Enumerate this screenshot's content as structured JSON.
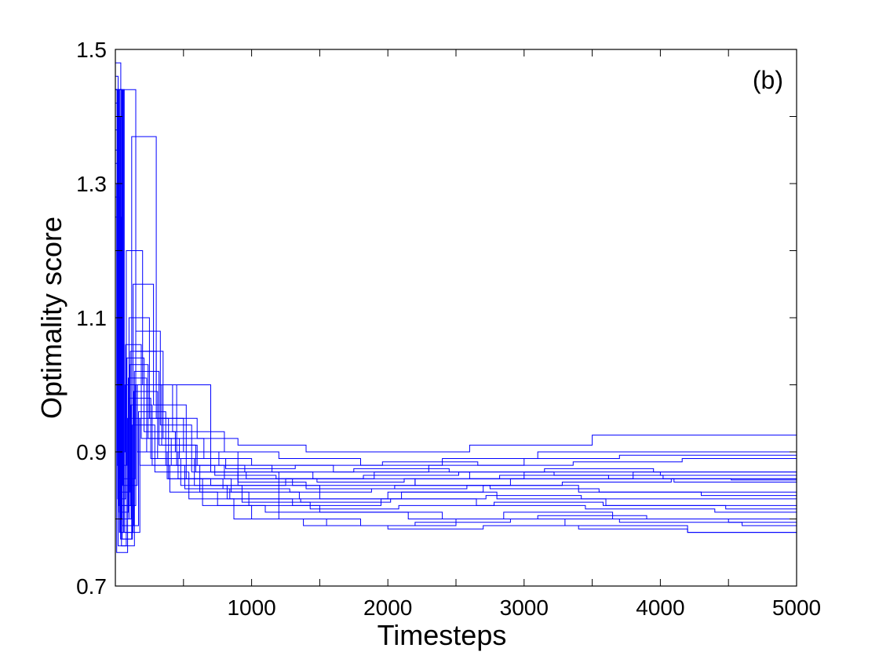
{
  "chart_data": {
    "type": "line",
    "title": "",
    "panel_label": "(b)",
    "xlabel": "Timesteps",
    "ylabel": "Optimality score",
    "xlim": [
      0,
      5000
    ],
    "ylim": [
      0.7,
      1.5
    ],
    "x_ticks": [
      1000,
      2000,
      3000,
      4000,
      5000
    ],
    "x_tick_labels": [
      "1000",
      "2000",
      "3000",
      "4000",
      "5000"
    ],
    "x_minor_ticks": [
      500,
      1500,
      2500,
      3500,
      4500
    ],
    "y_ticks": [
      0.7,
      0.9,
      1.1,
      1.3,
      1.5
    ],
    "y_tick_labels": [
      "0.7",
      "0.9",
      "1.1",
      "1.3",
      "1.5"
    ],
    "y_minor_ticks": [
      0.8,
      1.0,
      1.2,
      1.4
    ],
    "grid": false,
    "legend": "none",
    "line_color": "#0000ff",
    "step_style": "post",
    "series": [
      {
        "x": [
          0,
          30,
          60,
          150,
          300,
          600,
          900,
          1400,
          2000,
          2600,
          3500,
          5000
        ],
        "y": [
          1.44,
          0.78,
          1.44,
          1.05,
          0.95,
          0.92,
          0.91,
          0.9,
          0.9,
          0.91,
          0.925,
          0.925
        ]
      },
      {
        "x": [
          0,
          20,
          80,
          200,
          450,
          800,
          1300,
          2200,
          3000,
          4000,
          5000
        ],
        "y": [
          1.46,
          0.76,
          1.2,
          1.0,
          0.88,
          0.86,
          0.85,
          0.86,
          0.87,
          0.865,
          0.865
        ]
      },
      {
        "x": [
          0,
          40,
          100,
          250,
          500,
          900,
          1500,
          2100,
          2800,
          3600,
          5000
        ],
        "y": [
          1.48,
          0.8,
          1.1,
          0.95,
          0.9,
          0.85,
          0.83,
          0.84,
          0.83,
          0.82,
          0.82
        ]
      },
      {
        "x": [
          0,
          50,
          120,
          300,
          700,
          1200,
          1800,
          2500,
          3300,
          4200,
          5000
        ],
        "y": [
          1.44,
          0.77,
          1.37,
          1.0,
          0.87,
          0.8,
          0.79,
          0.8,
          0.79,
          0.78,
          0.78
        ]
      },
      {
        "x": [
          0,
          10,
          90,
          180,
          400,
          750,
          1100,
          1700,
          2400,
          3100,
          3900,
          5000
        ],
        "y": [
          1.3,
          0.75,
          0.95,
          0.88,
          0.84,
          0.82,
          0.81,
          0.81,
          0.8,
          0.805,
          0.8,
          0.8
        ]
      },
      {
        "x": [
          0,
          25,
          110,
          350,
          650,
          1000,
          1600,
          2300,
          3000,
          3700,
          5000
        ],
        "y": [
          1.44,
          0.82,
          1.05,
          0.92,
          0.89,
          0.88,
          0.87,
          0.88,
          0.89,
          0.895,
          0.895
        ]
      },
      {
        "x": [
          0,
          35,
          130,
          280,
          520,
          850,
          1350,
          2000,
          2700,
          3400,
          4300,
          5000
        ],
        "y": [
          1.4,
          0.78,
          1.15,
          0.97,
          0.86,
          0.84,
          0.83,
          0.84,
          0.85,
          0.84,
          0.835,
          0.835
        ]
      },
      {
        "x": [
          0,
          15,
          70,
          160,
          380,
          700,
          1250,
          1900,
          2600,
          3200,
          4100,
          5000
        ],
        "y": [
          1.44,
          0.9,
          1.0,
          0.9,
          0.86,
          0.85,
          0.86,
          0.87,
          0.86,
          0.86,
          0.855,
          0.855
        ]
      },
      {
        "x": [
          0,
          45,
          140,
          320,
          600,
          950,
          1450,
          2200,
          2900,
          3800,
          5000
        ],
        "y": [
          1.25,
          0.76,
          1.02,
          0.91,
          0.88,
          0.87,
          0.86,
          0.85,
          0.86,
          0.87,
          0.87
        ]
      },
      {
        "x": [
          0,
          55,
          160,
          420,
          800,
          1200,
          1800,
          2400,
          3100,
          4000,
          5000
        ],
        "y": [
          1.44,
          0.85,
          1.0,
          0.93,
          0.9,
          0.89,
          0.88,
          0.89,
          0.9,
          0.9,
          0.9
        ]
      },
      {
        "x": [
          0,
          20,
          100,
          260,
          480,
          820,
          1300,
          1950,
          2650,
          3450,
          4400,
          5000
        ],
        "y": [
          1.38,
          0.8,
          0.98,
          0.89,
          0.85,
          0.83,
          0.82,
          0.83,
          0.82,
          0.815,
          0.81,
          0.81
        ]
      },
      {
        "x": [
          0,
          30,
          150,
          330,
          560,
          900,
          1400,
          2050,
          2750,
          3550,
          5000
        ],
        "y": [
          1.44,
          0.82,
          1.08,
          0.94,
          0.87,
          0.855,
          0.845,
          0.85,
          0.845,
          0.84,
          0.84
        ]
      },
      {
        "x": [
          0,
          60,
          170,
          370,
          620,
          980,
          1500,
          2150,
          2850,
          3650,
          4500,
          5000
        ],
        "y": [
          1.2,
          0.79,
          0.96,
          0.88,
          0.84,
          0.82,
          0.81,
          0.8,
          0.81,
          0.8,
          0.795,
          0.795
        ]
      },
      {
        "x": [
          0,
          12,
          85,
          210,
          440,
          760,
          1150,
          1750,
          2450,
          3150,
          3950,
          5000
        ],
        "y": [
          1.44,
          0.88,
          1.04,
          0.93,
          0.9,
          0.88,
          0.87,
          0.875,
          0.87,
          0.875,
          0.87,
          0.87
        ]
      },
      {
        "x": [
          0,
          38,
          125,
          290,
          540,
          870,
          1380,
          2000,
          2700,
          3400,
          4200,
          5000
        ],
        "y": [
          1.35,
          0.77,
          0.94,
          0.87,
          0.83,
          0.8,
          0.79,
          0.785,
          0.79,
          0.785,
          0.78,
          0.78
        ]
      },
      {
        "x": [
          0,
          28,
          95,
          230,
          460,
          790,
          1280,
          1880,
          2580,
          3280,
          4080,
          5000
        ],
        "y": [
          1.44,
          0.81,
          1.01,
          0.9,
          0.86,
          0.845,
          0.84,
          0.845,
          0.85,
          0.855,
          0.86,
          0.86
        ]
      },
      {
        "x": [
          0,
          18,
          75,
          190,
          410,
          730,
          1180,
          1820,
          2520,
          3220,
          4020,
          5000
        ],
        "y": [
          1.42,
          0.83,
          1.06,
          0.92,
          0.88,
          0.865,
          0.86,
          0.865,
          0.87,
          0.865,
          0.86,
          0.86
        ]
      },
      {
        "x": [
          0,
          48,
          135,
          310,
          580,
          930,
          1430,
          2080,
          2780,
          3580,
          4480,
          5000
        ],
        "y": [
          1.44,
          0.79,
          0.99,
          0.89,
          0.85,
          0.825,
          0.815,
          0.82,
          0.825,
          0.82,
          0.815,
          0.815
        ]
      },
      {
        "x": [
          0,
          22,
          105,
          240,
          470,
          810,
          1320,
          1960,
          2660,
          3360,
          4160,
          5000
        ],
        "y": [
          1.33,
          0.84,
          1.03,
          0.92,
          0.89,
          0.875,
          0.88,
          0.885,
          0.88,
          0.885,
          0.89,
          0.89
        ]
      },
      {
        "x": [
          0,
          42,
          115,
          270,
          510,
          840,
          1360,
          2020,
          2720,
          3420,
          4220,
          5000
        ],
        "y": [
          1.44,
          0.8,
          0.97,
          0.88,
          0.845,
          0.83,
          0.825,
          0.83,
          0.835,
          0.83,
          0.83,
          0.83
        ]
      },
      {
        "x": [
          0,
          33,
          145,
          340,
          590,
          960,
          1480,
          2120,
          2820,
          3620,
          4520,
          5000
        ],
        "y": [
          1.28,
          0.86,
          1.0,
          0.91,
          0.87,
          0.86,
          0.855,
          0.86,
          0.865,
          0.86,
          0.858,
          0.858
        ]
      },
      {
        "x": [
          0,
          65,
          180,
          390,
          640,
          1000,
          1550,
          2200,
          2900,
          3700,
          4600,
          5000
        ],
        "y": [
          1.44,
          0.78,
          0.95,
          0.86,
          0.82,
          0.8,
          0.79,
          0.795,
          0.8,
          0.795,
          0.79,
          0.79
        ]
      }
    ]
  }
}
